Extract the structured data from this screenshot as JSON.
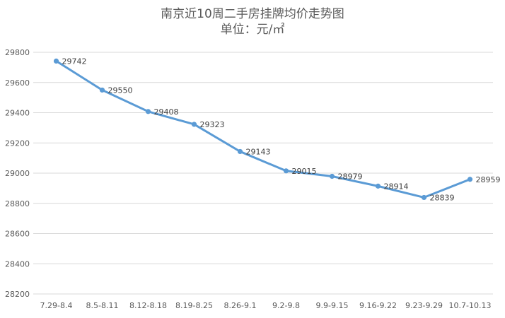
{
  "chart_data": {
    "type": "line",
    "title": "南京近10周二手房挂牌均价走势图",
    "subtitle": "单位：元/㎡",
    "categories": [
      "7.29-8.4",
      "8.5-8.11",
      "8.12-8.18",
      "8.19-8.25",
      "8.26-9.1",
      "9.2-9.8",
      "9.9-9.15",
      "9.16-9.22",
      "9.23-9.29",
      "10.7-10.13"
    ],
    "values": [
      29742,
      29550,
      29408,
      29323,
      29143,
      29015,
      28979,
      28914,
      28839,
      28959
    ],
    "data_labels": [
      "29742",
      "29550",
      "29408",
      "29323",
      "29143",
      "29015",
      "28979",
      "28914",
      "28839",
      "28959"
    ],
    "yticks": [
      "28200",
      "28400",
      "28600",
      "28800",
      "29000",
      "29200",
      "29400",
      "29600",
      "29800"
    ],
    "ylim": [
      28200,
      29800
    ],
    "grid": true,
    "legend": "none",
    "colors": {
      "line": "#5b9bd5",
      "grid": "#d9d9d9",
      "text": "#595959"
    }
  }
}
